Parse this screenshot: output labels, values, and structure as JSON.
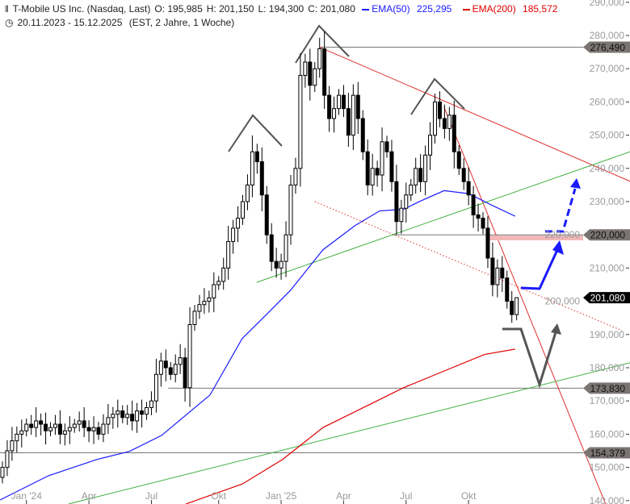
{
  "header": {
    "instrument": "T-Mobile US Inc. (Nasdaq, Last)",
    "open": "O: 195,985",
    "high": "H: 201,150",
    "low": "L: 194,300",
    "close": "C: 201,080",
    "ema50_label": "EMA(50)",
    "ema50_value": "225,295",
    "ema200_label": "EMA(200)",
    "ema200_value": "185,572",
    "range": "20.11.2023 - 15.12.2025",
    "range_info": "(EST, 2 Jahre, 1 Woche)"
  },
  "colors": {
    "ema50": "#1a1aff",
    "ema200": "#e00000",
    "trend_red": "#e03030",
    "trend_green": "#40b040",
    "badge": "#7a7572",
    "last_badge": "#000000",
    "resistance_band": "#f2b8b8"
  },
  "chart_data": {
    "type": "candlestick",
    "interval": "1 Woche",
    "ylim": [
      140,
      290
    ],
    "yticks": [
      140,
      150,
      160,
      170,
      180,
      190,
      200,
      210,
      220,
      230,
      240,
      250,
      260,
      270,
      280,
      290
    ],
    "ytick_labels": [
      "140,000",
      "150,000",
      "160,000",
      "170,000",
      "180,000",
      "190,000",
      "200,000",
      "210,000",
      "220,000",
      "230,000",
      "240,000",
      "250,000",
      "260,000",
      "270,000",
      "280,000",
      "290,000"
    ],
    "xticks": [
      {
        "week": 5,
        "label": "Jan '24"
      },
      {
        "week": 18,
        "label": "Apr"
      },
      {
        "week": 31,
        "label": "Jul"
      },
      {
        "week": 45,
        "label": "Okt"
      },
      {
        "week": 58,
        "label": "Jan '25"
      },
      {
        "week": 71,
        "label": "Apr"
      },
      {
        "week": 84,
        "label": "Jul"
      },
      {
        "week": 97,
        "label": "Okt"
      }
    ],
    "closes": [
      150,
      155,
      158,
      160,
      161,
      163,
      162,
      164,
      163,
      161,
      162,
      163,
      160,
      161,
      162,
      163,
      164,
      162,
      161,
      162,
      160,
      163,
      165,
      166,
      167,
      165,
      166,
      164,
      167,
      166,
      168,
      170,
      178,
      182,
      180,
      178,
      181,
      183,
      174,
      193,
      197,
      199,
      200,
      201,
      205,
      206,
      210,
      218,
      222,
      225,
      230,
      235,
      245,
      242,
      232,
      220,
      212,
      210,
      212,
      220,
      235,
      240,
      268,
      272,
      265,
      270,
      276,
      262,
      255,
      258,
      262,
      258,
      250,
      262,
      255,
      245,
      235,
      240,
      238,
      248,
      245,
      236,
      224,
      228,
      232,
      235,
      240,
      236,
      244,
      250,
      260,
      255,
      252,
      256,
      245,
      240,
      236,
      232,
      226,
      225,
      222,
      213,
      205,
      210,
      207,
      200,
      196,
      201.08
    ],
    "last_candle": {
      "open": 195.985,
      "high": 201.15,
      "low": 194.3,
      "close": 201.08
    },
    "ema50": [
      [
        -0.5,
        140.2
      ],
      [
        9.6,
        147.5
      ],
      [
        19.7,
        152.4
      ],
      [
        26.4,
        154.8
      ],
      [
        33.1,
        159.6
      ],
      [
        43.2,
        171.8
      ],
      [
        49.9,
        188.8
      ],
      [
        55,
        196.1
      ],
      [
        60,
        203.4
      ],
      [
        66.7,
        215.5
      ],
      [
        73.4,
        222.8
      ],
      [
        78.5,
        227.2
      ],
      [
        83.5,
        227.7
      ],
      [
        86.9,
        230.1
      ],
      [
        91.9,
        233.3
      ],
      [
        97,
        232.4
      ],
      [
        102,
        228.8
      ],
      [
        106.7,
        225.6
      ]
    ],
    "ema200": [
      [
        38.2,
        139
      ],
      [
        49.9,
        145
      ],
      [
        58.3,
        152.4
      ],
      [
        66.7,
        162
      ],
      [
        75.1,
        168
      ],
      [
        83.5,
        174
      ],
      [
        91.9,
        179
      ],
      [
        100.3,
        184
      ],
      [
        106.7,
        185.6
      ]
    ],
    "price_labels": [
      {
        "value": 276.49,
        "label": "276,490",
        "from_week": 66
      },
      {
        "value": 220,
        "label": "220,000",
        "from_week": 81
      },
      {
        "value": 201.08,
        "label": "201,080",
        "last": true
      },
      {
        "value": 173.83,
        "label": "173,830",
        "from_week": 34.5
      },
      {
        "value": 154.379,
        "label": "154,379",
        "from_week": -1
      }
    ],
    "trendlines": [
      {
        "color": "red",
        "from": [
          66,
          276.5
        ],
        "to": [
          130.6,
          236.1
        ]
      },
      {
        "color": "red",
        "from": [
          91.9,
          258.4
        ],
        "to": [
          125.5,
          139
        ]
      },
      {
        "color": "red",
        "style": "dotted",
        "from": [
          65,
          230
        ],
        "to": [
          128.9,
          191.2
        ]
      },
      {
        "color": "green",
        "from": [
          52.9,
          205.7
        ],
        "to": [
          130.6,
          245
        ]
      },
      {
        "color": "green",
        "from": [
          13.8,
          139
        ],
        "to": [
          130.6,
          181.5
        ]
      }
    ]
  }
}
